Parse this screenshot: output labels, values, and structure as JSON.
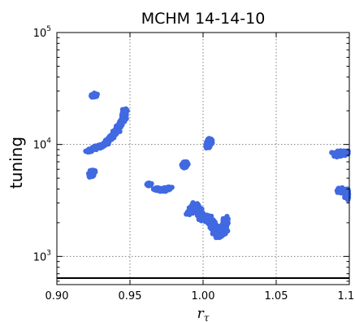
{
  "chart_data": {
    "type": "scatter",
    "title": "MCHM 14-14-10",
    "xlabel": "r_τ",
    "xlabel_main": "r",
    "xlabel_sub": "τ",
    "ylabel": "tuning",
    "xlim": [
      0.9,
      1.1
    ],
    "ylim": [
      560,
      100000
    ],
    "yscale": "log",
    "grid": true,
    "x_ticks": [
      "0.90",
      "0.95",
      "1.00",
      "1.05",
      "1.10"
    ],
    "y_ticks": [
      {
        "value": 1000,
        "base": "10",
        "exp": "3"
      },
      {
        "value": 10000,
        "base": "10",
        "exp": "4"
      },
      {
        "value": 100000,
        "base": "10",
        "exp": "5"
      }
    ],
    "point_color": "#4169e1",
    "hline": {
      "y": 640,
      "color": "#000000"
    },
    "clusters": [
      {
        "path": [
          [
            0.9215,
            8600
          ],
          [
            0.926,
            9400
          ],
          [
            0.932,
            9800
          ],
          [
            0.937,
            11500
          ],
          [
            0.942,
            14000
          ],
          [
            0.946,
            17500
          ],
          [
            0.9465,
            20500
          ]
        ],
        "spread": 0.0023
      },
      {
        "path": [
          [
            0.925,
            27000
          ],
          [
            0.9265,
            28000
          ]
        ],
        "spread": 0.0022
      },
      {
        "path": [
          [
            0.9235,
            5200
          ],
          [
            0.9245,
            5800
          ]
        ],
        "spread": 0.0022
      },
      {
        "path": [
          [
            0.963,
            4400
          ]
        ],
        "spread": 0.0018
      },
      {
        "path": [
          [
            0.968,
            4000
          ],
          [
            0.973,
            3900
          ],
          [
            0.977,
            4100
          ]
        ],
        "spread": 0.0022
      },
      {
        "path": [
          [
            0.987,
            6300
          ],
          [
            0.988,
            6900
          ]
        ],
        "spread": 0.0022
      },
      {
        "path": [
          [
            1.003,
            9500
          ],
          [
            1.005,
            11200
          ]
        ],
        "spread": 0.0024
      },
      {
        "path": [
          [
            0.991,
            2400
          ],
          [
            0.994,
            2900
          ],
          [
            0.998,
            2500
          ],
          [
            1.0,
            2100
          ]
        ],
        "spread": 0.0032
      },
      {
        "path": [
          [
            1.003,
            2300
          ],
          [
            1.007,
            1900
          ],
          [
            1.01,
            1500
          ],
          [
            1.014,
            1700
          ],
          [
            1.016,
            2200
          ]
        ],
        "spread": 0.0032
      },
      {
        "path": [
          [
            1.091,
            8100
          ],
          [
            1.1,
            8500
          ]
        ],
        "spread": 0.0042
      },
      {
        "path": [
          [
            1.093,
            3900
          ],
          [
            1.1,
            3800
          ],
          [
            1.1,
            3300
          ]
        ],
        "spread": 0.0036
      }
    ]
  }
}
